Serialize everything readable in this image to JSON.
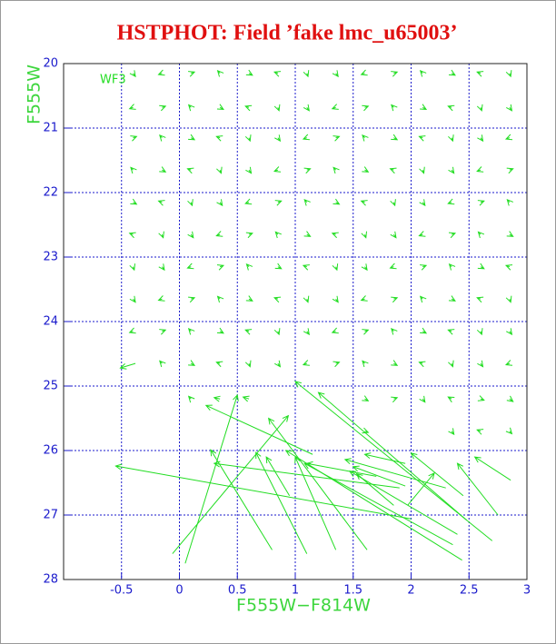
{
  "chart_data": {
    "type": "vector",
    "title": "HSTPHOT: Field ’fake lmc_u65003’",
    "annotation": "WF3",
    "x_label": "F555W−F814W",
    "y_label": "F555W",
    "color": "#22dd22",
    "grid": true,
    "y_inverted": true,
    "xlim": [
      -1,
      3
    ],
    "ylim": [
      20,
      28
    ],
    "xticks": [
      -0.5,
      0,
      0.5,
      1,
      1.5,
      2,
      2.5,
      3
    ],
    "yticks": [
      20,
      21,
      22,
      23,
      24,
      25,
      26,
      27,
      28
    ],
    "arrows": [
      [
        -0.4,
        20.15,
        -0.38,
        20.2
      ],
      [
        -0.15,
        20.15,
        -0.18,
        20.17
      ],
      [
        0.1,
        20.15,
        0.13,
        20.13
      ],
      [
        0.35,
        20.15,
        0.33,
        20.11
      ],
      [
        0.6,
        20.15,
        0.63,
        20.18
      ],
      [
        0.85,
        20.15,
        0.82,
        20.13
      ],
      [
        1.1,
        20.15,
        1.11,
        20.2
      ],
      [
        1.35,
        20.15,
        1.37,
        20.2
      ],
      [
        1.6,
        20.15,
        1.57,
        20.17
      ],
      [
        1.85,
        20.15,
        1.88,
        20.13
      ],
      [
        2.1,
        20.15,
        2.08,
        20.11
      ],
      [
        2.35,
        20.15,
        2.38,
        20.18
      ],
      [
        2.6,
        20.15,
        2.57,
        20.13
      ],
      [
        2.85,
        20.15,
        2.86,
        20.2
      ],
      [
        -0.4,
        20.68,
        -0.43,
        20.7
      ],
      [
        -0.15,
        20.68,
        -0.12,
        20.66
      ],
      [
        0.1,
        20.68,
        0.08,
        20.64
      ],
      [
        0.35,
        20.68,
        0.38,
        20.71
      ],
      [
        0.6,
        20.68,
        0.57,
        20.66
      ],
      [
        0.85,
        20.68,
        0.86,
        20.73
      ],
      [
        1.1,
        20.68,
        1.12,
        20.73
      ],
      [
        1.35,
        20.68,
        1.32,
        20.7
      ],
      [
        1.6,
        20.68,
        1.63,
        20.66
      ],
      [
        1.85,
        20.68,
        1.83,
        20.64
      ],
      [
        2.1,
        20.68,
        2.13,
        20.71
      ],
      [
        2.35,
        20.68,
        2.32,
        20.66
      ],
      [
        2.6,
        20.68,
        2.61,
        20.73
      ],
      [
        2.85,
        20.68,
        2.87,
        20.73
      ],
      [
        -0.4,
        21.15,
        -0.37,
        21.13
      ],
      [
        -0.15,
        21.15,
        -0.17,
        21.11
      ],
      [
        0.1,
        21.15,
        0.13,
        21.18
      ],
      [
        0.35,
        21.15,
        0.32,
        21.13
      ],
      [
        0.6,
        21.15,
        0.61,
        21.2
      ],
      [
        0.85,
        21.15,
        0.87,
        21.2
      ],
      [
        1.1,
        21.15,
        1.07,
        21.17
      ],
      [
        1.35,
        21.15,
        1.38,
        21.13
      ],
      [
        1.6,
        21.15,
        1.58,
        21.11
      ],
      [
        1.85,
        21.15,
        1.88,
        21.18
      ],
      [
        2.1,
        21.15,
        2.07,
        21.13
      ],
      [
        2.35,
        21.15,
        2.36,
        21.2
      ],
      [
        2.6,
        21.15,
        2.62,
        21.2
      ],
      [
        2.85,
        21.15,
        2.82,
        21.17
      ],
      [
        -0.4,
        21.65,
        -0.42,
        21.61
      ],
      [
        -0.15,
        21.65,
        -0.12,
        21.68
      ],
      [
        0.1,
        21.65,
        0.07,
        21.63
      ],
      [
        0.35,
        21.65,
        0.36,
        21.7
      ],
      [
        0.6,
        21.65,
        0.62,
        21.7
      ],
      [
        0.85,
        21.65,
        0.82,
        21.67
      ],
      [
        1.1,
        21.65,
        1.13,
        21.63
      ],
      [
        1.35,
        21.65,
        1.33,
        21.61
      ],
      [
        1.6,
        21.65,
        1.63,
        21.68
      ],
      [
        1.85,
        21.65,
        1.82,
        21.63
      ],
      [
        2.1,
        21.65,
        2.11,
        21.7
      ],
      [
        2.35,
        21.65,
        2.37,
        21.7
      ],
      [
        2.6,
        21.65,
        2.57,
        21.67
      ],
      [
        2.85,
        21.65,
        2.88,
        21.63
      ],
      [
        -0.4,
        22.15,
        -0.37,
        22.18
      ],
      [
        -0.15,
        22.15,
        -0.18,
        22.13
      ],
      [
        0.1,
        22.15,
        0.11,
        22.2
      ],
      [
        0.35,
        22.15,
        0.37,
        22.2
      ],
      [
        0.6,
        22.15,
        0.57,
        22.17
      ],
      [
        0.85,
        22.15,
        0.88,
        22.13
      ],
      [
        1.1,
        22.15,
        1.08,
        22.11
      ],
      [
        1.35,
        22.15,
        1.38,
        22.18
      ],
      [
        1.6,
        22.15,
        1.57,
        22.13
      ],
      [
        1.85,
        22.15,
        1.86,
        22.2
      ],
      [
        2.1,
        22.15,
        2.12,
        22.2
      ],
      [
        2.35,
        22.15,
        2.32,
        22.17
      ],
      [
        2.6,
        22.15,
        2.63,
        22.13
      ],
      [
        2.85,
        22.15,
        2.83,
        22.11
      ],
      [
        -0.4,
        22.65,
        -0.43,
        22.63
      ],
      [
        -0.15,
        22.65,
        -0.14,
        22.7
      ],
      [
        0.1,
        22.65,
        0.12,
        22.7
      ],
      [
        0.35,
        22.65,
        0.32,
        22.67
      ],
      [
        0.6,
        22.65,
        0.63,
        22.63
      ],
      [
        0.85,
        22.65,
        0.83,
        22.61
      ],
      [
        1.1,
        22.65,
        1.13,
        22.68
      ],
      [
        1.35,
        22.65,
        1.32,
        22.63
      ],
      [
        1.6,
        22.65,
        1.61,
        22.7
      ],
      [
        1.85,
        22.65,
        1.87,
        22.7
      ],
      [
        2.1,
        22.65,
        2.07,
        22.67
      ],
      [
        2.35,
        22.65,
        2.38,
        22.63
      ],
      [
        2.6,
        22.65,
        2.58,
        22.61
      ],
      [
        2.85,
        22.65,
        2.88,
        22.68
      ],
      [
        -0.4,
        23.15,
        -0.39,
        23.2
      ],
      [
        -0.15,
        23.15,
        -0.13,
        23.2
      ],
      [
        0.1,
        23.15,
        0.07,
        23.17
      ],
      [
        0.35,
        23.15,
        0.38,
        23.13
      ],
      [
        0.6,
        23.15,
        0.58,
        23.11
      ],
      [
        0.85,
        23.15,
        0.88,
        23.18
      ],
      [
        1.1,
        23.15,
        1.07,
        23.13
      ],
      [
        1.35,
        23.15,
        1.36,
        23.2
      ],
      [
        1.6,
        23.15,
        1.62,
        23.2
      ],
      [
        1.85,
        23.15,
        1.82,
        23.17
      ],
      [
        2.1,
        23.15,
        2.13,
        23.13
      ],
      [
        2.35,
        23.15,
        2.33,
        23.11
      ],
      [
        2.6,
        23.15,
        2.63,
        23.18
      ],
      [
        2.85,
        23.15,
        2.82,
        23.13
      ],
      [
        -0.4,
        23.65,
        -0.38,
        23.7
      ],
      [
        -0.15,
        23.65,
        -0.18,
        23.67
      ],
      [
        0.1,
        23.65,
        0.13,
        23.63
      ],
      [
        0.35,
        23.65,
        0.33,
        23.61
      ],
      [
        0.6,
        23.65,
        0.63,
        23.68
      ],
      [
        0.85,
        23.65,
        0.82,
        23.63
      ],
      [
        1.1,
        23.65,
        1.11,
        23.7
      ],
      [
        1.35,
        23.65,
        1.37,
        23.7
      ],
      [
        1.6,
        23.65,
        1.57,
        23.67
      ],
      [
        1.85,
        23.65,
        1.88,
        23.63
      ],
      [
        2.1,
        23.65,
        2.08,
        23.61
      ],
      [
        2.35,
        23.65,
        2.38,
        23.68
      ],
      [
        2.6,
        23.65,
        2.57,
        23.63
      ],
      [
        2.85,
        23.65,
        2.86,
        23.7
      ],
      [
        -0.4,
        24.15,
        -0.43,
        24.17
      ],
      [
        -0.15,
        24.15,
        -0.12,
        24.13
      ],
      [
        0.1,
        24.15,
        0.08,
        24.11
      ],
      [
        0.35,
        24.15,
        0.38,
        24.18
      ],
      [
        0.6,
        24.15,
        0.57,
        24.13
      ],
      [
        0.85,
        24.15,
        0.86,
        24.2
      ],
      [
        1.1,
        24.15,
        1.12,
        24.2
      ],
      [
        1.35,
        24.15,
        1.32,
        24.17
      ],
      [
        1.6,
        24.15,
        1.63,
        24.13
      ],
      [
        1.85,
        24.15,
        1.83,
        24.11
      ],
      [
        2.1,
        24.15,
        2.13,
        24.18
      ],
      [
        2.35,
        24.15,
        2.32,
        24.13
      ],
      [
        2.6,
        24.15,
        2.61,
        24.2
      ],
      [
        2.85,
        24.15,
        2.87,
        24.2
      ],
      [
        -0.38,
        24.65,
        -0.51,
        24.72
      ],
      [
        -0.15,
        24.65,
        -0.17,
        24.61
      ],
      [
        0.1,
        24.65,
        0.13,
        24.68
      ],
      [
        0.35,
        24.65,
        0.32,
        24.63
      ],
      [
        0.6,
        24.65,
        0.61,
        24.7
      ],
      [
        0.85,
        24.65,
        0.87,
        24.7
      ],
      [
        1.1,
        24.65,
        1.07,
        24.67
      ],
      [
        1.35,
        24.65,
        1.38,
        24.63
      ],
      [
        1.6,
        24.65,
        1.58,
        24.61
      ],
      [
        1.85,
        24.65,
        1.88,
        24.68
      ],
      [
        2.1,
        24.65,
        2.07,
        24.63
      ],
      [
        2.35,
        24.65,
        2.36,
        24.7
      ],
      [
        2.6,
        24.65,
        2.62,
        24.7
      ],
      [
        2.85,
        24.65,
        2.82,
        24.67
      ],
      [
        0.1,
        25.2,
        0.08,
        25.16
      ],
      [
        0.35,
        25.2,
        0.3,
        25.18
      ],
      [
        0.6,
        25.2,
        0.55,
        25.17
      ],
      [
        1.6,
        25.2,
        1.63,
        25.23
      ],
      [
        1.85,
        25.2,
        1.88,
        25.18
      ],
      [
        2.1,
        25.2,
        2.12,
        25.25
      ],
      [
        2.35,
        25.2,
        2.32,
        25.17
      ],
      [
        2.6,
        25.2,
        2.63,
        25.22
      ],
      [
        2.85,
        25.2,
        2.88,
        25.24
      ],
      [
        1.6,
        25.7,
        1.63,
        25.72
      ],
      [
        2.35,
        25.7,
        2.37,
        25.75
      ],
      [
        2.6,
        25.7,
        2.57,
        25.68
      ],
      [
        2.85,
        25.7,
        2.87,
        25.74
      ],
      [
        2.0,
        27.06,
        -0.55,
        26.24
      ],
      [
        1.15,
        26.06,
        0.23,
        25.3
      ],
      [
        0.05,
        27.75,
        0.5,
        25.14
      ],
      [
        -0.06,
        27.6,
        0.94,
        25.46
      ],
      [
        0.8,
        27.54,
        0.27,
        25.99
      ],
      [
        1.9,
        26.58,
        0.3,
        26.2
      ],
      [
        1.1,
        27.6,
        0.66,
        26.03
      ],
      [
        1.62,
        27.54,
        0.77,
        25.5
      ],
      [
        2.7,
        27.4,
        1.0,
        24.93
      ],
      [
        2.48,
        27.08,
        1.2,
        25.1
      ],
      [
        2.44,
        27.7,
        0.92,
        26.0
      ],
      [
        1.35,
        27.54,
        1.0,
        26.1
      ],
      [
        2.36,
        27.46,
        1.08,
        26.2
      ],
      [
        2.3,
        26.58,
        1.43,
        26.14
      ],
      [
        2.4,
        27.3,
        1.47,
        26.32
      ],
      [
        1.85,
        26.85,
        1.53,
        26.36
      ],
      [
        2.45,
        26.7,
        2.0,
        26.04
      ],
      [
        2.75,
        27.0,
        2.4,
        26.2
      ],
      [
        2.86,
        26.46,
        2.55,
        26.1
      ],
      [
        1.97,
        26.85,
        2.2,
        26.35
      ],
      [
        1.95,
        26.2,
        1.6,
        26.06
      ],
      [
        1.7,
        26.4,
        1.1,
        26.2
      ],
      [
        0.95,
        26.7,
        0.75,
        26.1
      ],
      [
        1.95,
        26.55,
        1.5,
        26.25
      ]
    ]
  }
}
